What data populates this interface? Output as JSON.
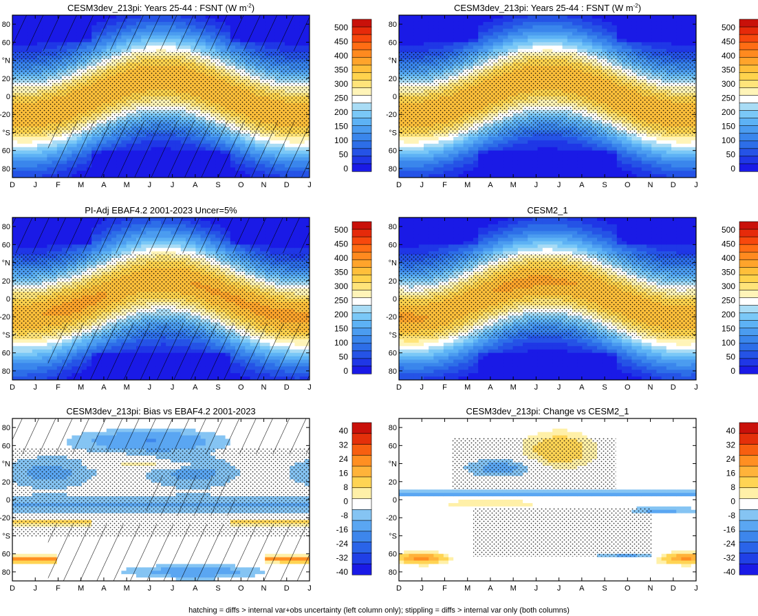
{
  "figure": {
    "footnote": "hatching = diffs > internal var+obs uncertainty (left column only); stippling = diffs > internal var only (both columns)"
  },
  "axes": {
    "x_ticks": [
      "D",
      "J",
      "F",
      "M",
      "A",
      "M",
      "J",
      "J",
      "A",
      "S",
      "O",
      "N",
      "D",
      "J"
    ],
    "y_tick_labels": [
      "80",
      "60",
      "°N",
      "20",
      "0",
      "-20",
      "°S",
      "60",
      "80"
    ],
    "y_tick_values": [
      80,
      60,
      40,
      20,
      0,
      -20,
      -40,
      -60,
      -80
    ],
    "ylim": [
      -90,
      90
    ]
  },
  "colors": {
    "seq_scale": [
      "#1a1ae6",
      "#1f37e6",
      "#2553e6",
      "#2d6ee8",
      "#3a86ec",
      "#4b9cf0",
      "#5db2f5",
      "#7ac8f7",
      "#a9dcf5",
      "#ffffff",
      "#fff4b8",
      "#ffe47a",
      "#ffd34d",
      "#ffbf3a",
      "#ffa42b",
      "#ff8a1f",
      "#ff6d14",
      "#f7480d",
      "#e62a0a",
      "#c9110a"
    ],
    "div_scale": [
      "#1a1ae6",
      "#2040e6",
      "#2a64e8",
      "#3d86ec",
      "#5aa6f2",
      "#85c4f3",
      "#ffffff",
      "#fff0a8",
      "#ffd454",
      "#ffb33a",
      "#ff8f22",
      "#f75f10",
      "#e4300a",
      "#c9110a"
    ]
  },
  "panels": [
    {
      "id": "p1",
      "title_main": "CESM3dev_213pi: Years 25-44 : FSNT (W m",
      "title_sup": "-2",
      "title_end": ")",
      "kind": "seq",
      "hatch": true,
      "stipple": true,
      "colorbar_labels": [
        "500",
        "450",
        "400",
        "350",
        "300",
        "250",
        "200",
        "150",
        "100",
        "50",
        "0"
      ]
    },
    {
      "id": "p2",
      "title_main": "CESM3dev_213pi: Years 25-44 : FSNT (W m",
      "title_sup": "-2",
      "title_end": ")",
      "kind": "seq",
      "hatch": false,
      "stipple": true,
      "colorbar_labels": [
        "500",
        "450",
        "400",
        "350",
        "300",
        "250",
        "200",
        "150",
        "100",
        "50",
        "0"
      ]
    },
    {
      "id": "p3",
      "title_main": "PI-Adj EBAF4.2 2001-2023 Uncer=5%",
      "title_sup": "",
      "title_end": "",
      "kind": "seq",
      "hatch": true,
      "stipple": true,
      "colorbar_labels": [
        "500",
        "450",
        "400",
        "350",
        "300",
        "250",
        "200",
        "150",
        "100",
        "50",
        "0"
      ]
    },
    {
      "id": "p4",
      "title_main": "CESM2_1",
      "title_sup": "",
      "title_end": "",
      "kind": "seq",
      "hatch": false,
      "stipple": true,
      "colorbar_labels": [
        "500",
        "450",
        "400",
        "350",
        "300",
        "250",
        "200",
        "150",
        "100",
        "50",
        "0"
      ]
    },
    {
      "id": "p5",
      "title_main": "CESM3dev_213pi: Bias vs EBAF4.2 2001-2023",
      "title_sup": "",
      "title_end": "",
      "kind": "bias",
      "hatch": true,
      "stipple": true,
      "colorbar_labels": [
        "40",
        "32",
        "24",
        "16",
        "8",
        "0",
        "-8",
        "-16",
        "-24",
        "-32",
        "-40"
      ]
    },
    {
      "id": "p6",
      "title_main": "CESM3dev_213pi: Change vs CESM2_1",
      "title_sup": "",
      "title_end": "",
      "kind": "change",
      "hatch": false,
      "stipple": true,
      "colorbar_labels": [
        "40",
        "32",
        "24",
        "16",
        "8",
        "0",
        "-8",
        "-16",
        "-24",
        "-32",
        "-40"
      ]
    }
  ],
  "chart_data": [
    {
      "type": "heatmap",
      "title": "CESM3dev_213pi: Years 25-44 : FSNT (W m-2)",
      "x": [
        "D",
        "J",
        "F",
        "M",
        "A",
        "M",
        "J",
        "J",
        "A",
        "S",
        "O",
        "N",
        "D",
        "J"
      ],
      "ylim": [
        -90,
        90
      ],
      "colorbar": [
        0,
        500
      ],
      "values_note": "zonal-mean net SW flux; max ~350 at 20S in Dec/Jan and 20N in Jun, min ~0 polar winter"
    },
    {
      "type": "heatmap",
      "title": "CESM3dev_213pi: Years 25-44 : FSNT (W m-2)",
      "x": [
        "D",
        "J",
        "F",
        "M",
        "A",
        "M",
        "J",
        "J",
        "A",
        "S",
        "O",
        "N",
        "D",
        "J"
      ],
      "ylim": [
        -90,
        90
      ],
      "colorbar": [
        0,
        500
      ]
    },
    {
      "type": "heatmap",
      "title": "PI-Adj EBAF4.2 2001-2023 Uncer=5%",
      "x": [
        "D",
        "J",
        "F",
        "M",
        "A",
        "M",
        "J",
        "J",
        "A",
        "S",
        "O",
        "N",
        "D",
        "J"
      ],
      "ylim": [
        -90,
        90
      ],
      "colorbar": [
        0,
        500
      ]
    },
    {
      "type": "heatmap",
      "title": "CESM2_1",
      "x": [
        "D",
        "J",
        "F",
        "M",
        "A",
        "M",
        "J",
        "J",
        "A",
        "S",
        "O",
        "N",
        "D",
        "J"
      ],
      "ylim": [
        -90,
        90
      ],
      "colorbar": [
        0,
        500
      ]
    },
    {
      "type": "heatmap",
      "title": "CESM3dev_213pi: Bias vs EBAF4.2 2001-2023",
      "x": [
        "D",
        "J",
        "F",
        "M",
        "A",
        "M",
        "J",
        "J",
        "A",
        "S",
        "O",
        "N",
        "D",
        "J"
      ],
      "ylim": [
        -90,
        90
      ],
      "colorbar": [
        -40,
        40
      ]
    },
    {
      "type": "heatmap",
      "title": "CESM3dev_213pi: Change vs CESM2_1",
      "x": [
        "D",
        "J",
        "F",
        "M",
        "A",
        "M",
        "J",
        "J",
        "A",
        "S",
        "O",
        "N",
        "D",
        "J"
      ],
      "ylim": [
        -90,
        90
      ],
      "colorbar": [
        -40,
        40
      ]
    }
  ]
}
